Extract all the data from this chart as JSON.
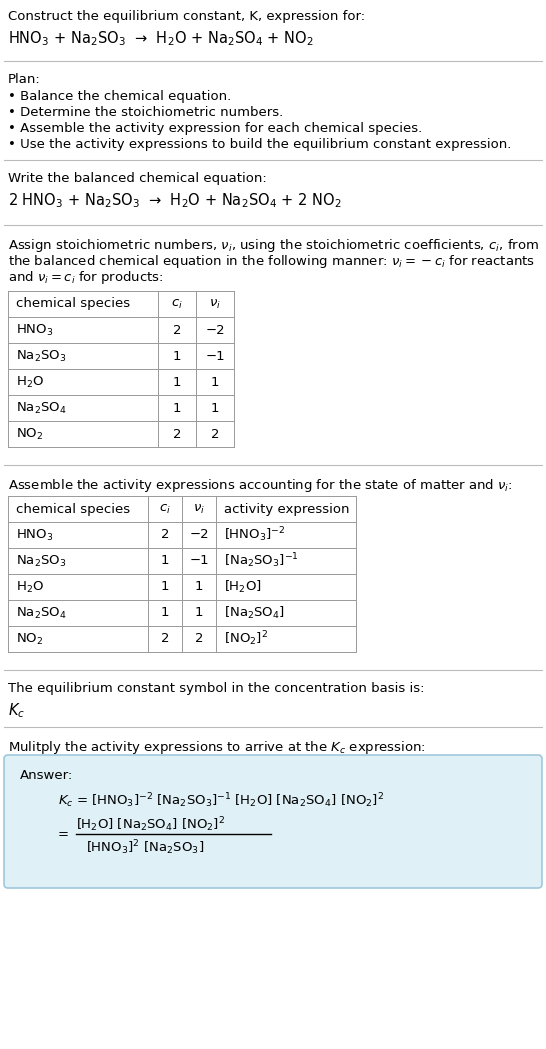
{
  "bg_color": "#ffffff",
  "text_color": "#000000",
  "section_bg": "#dff0f7",
  "section_border": "#a0c8dc",
  "title_line1": "Construct the equilibrium constant, K, expression for:",
  "title_rxn": "HNO$_3$ + Na$_2$SO$_3$  →  H$_2$O + Na$_2$SO$_4$ + NO$_2$",
  "plan_header": "Plan:",
  "plan_bullets": [
    "• Balance the chemical equation.",
    "• Determine the stoichiometric numbers.",
    "• Assemble the activity expression for each chemical species.",
    "• Use the activity expressions to build the equilibrium constant expression."
  ],
  "balanced_header": "Write the balanced chemical equation:",
  "balanced_rxn": "2 HNO$_3$ + Na$_2$SO$_3$  →  H$_2$O + Na$_2$SO$_4$ + 2 NO$_2$",
  "stoich_intro_lines": [
    "Assign stoichiometric numbers, $\\nu_i$, using the stoichiometric coefficients, $c_i$, from",
    "the balanced chemical equation in the following manner: $\\nu_i = -c_i$ for reactants",
    "and $\\nu_i = c_i$ for products:"
  ],
  "table1_headers": [
    "chemical species",
    "$c_i$",
    "$\\nu_i$"
  ],
  "table1_rows": [
    [
      "HNO$_3$",
      "2",
      "−2"
    ],
    [
      "Na$_2$SO$_3$",
      "1",
      "−1"
    ],
    [
      "H$_2$O",
      "1",
      "1"
    ],
    [
      "Na$_2$SO$_4$",
      "1",
      "1"
    ],
    [
      "NO$_2$",
      "2",
      "2"
    ]
  ],
  "assemble_intro": "Assemble the activity expressions accounting for the state of matter and $\\nu_i$:",
  "table2_headers": [
    "chemical species",
    "$c_i$",
    "$\\nu_i$",
    "activity expression"
  ],
  "table2_rows": [
    [
      "HNO$_3$",
      "2",
      "−2",
      "[HNO$_3$]$^{-2}$"
    ],
    [
      "Na$_2$SO$_3$",
      "1",
      "−1",
      "[Na$_2$SO$_3$]$^{-1}$"
    ],
    [
      "H$_2$O",
      "1",
      "1",
      "[H$_2$O]"
    ],
    [
      "Na$_2$SO$_4$",
      "1",
      "1",
      "[Na$_2$SO$_4$]"
    ],
    [
      "NO$_2$",
      "2",
      "2",
      "[NO$_2$]$^2$"
    ]
  ],
  "kc_symbol_intro": "The equilibrium constant symbol in the concentration basis is:",
  "kc_symbol": "$K_c$",
  "multiply_intro": "Mulitply the activity expressions to arrive at the $K_c$ expression:",
  "answer_label": "Answer:",
  "kc_eq_line1": "$K_c$ = [HNO$_3$]$^{-2}$ [Na$_2$SO$_3$]$^{-1}$ [H$_2$O] [Na$_2$SO$_4$] [NO$_2$]$^2$",
  "kc_num": "[H$_2$O] [Na$_2$SO$_4$] [NO$_2$]$^2$",
  "kc_den": "[HNO$_3$]$^2$ [Na$_2$SO$_3$]",
  "font_size_body": 9.5,
  "font_size_table": 9.5,
  "font_size_rxn": 10.5
}
